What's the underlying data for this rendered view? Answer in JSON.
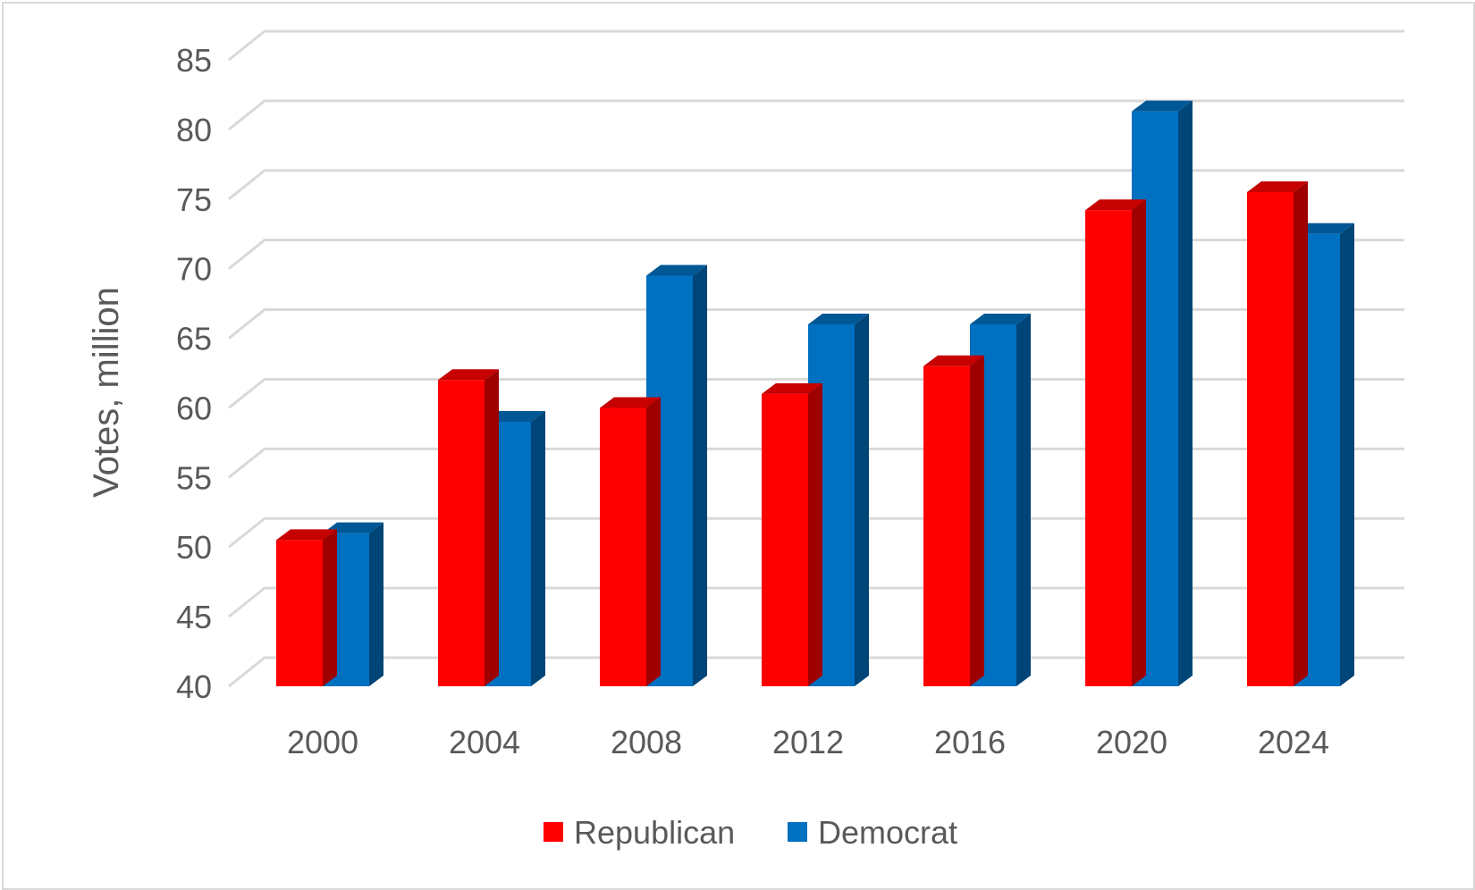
{
  "chart_data": {
    "type": "bar",
    "title": "",
    "xlabel": "",
    "ylabel": "Votes, million",
    "ylim": [
      40,
      85
    ],
    "yticks": [
      40,
      45,
      50,
      55,
      60,
      65,
      70,
      75,
      80,
      85
    ],
    "categories": [
      "2000",
      "2004",
      "2008",
      "2012",
      "2016",
      "2020",
      "2024"
    ],
    "series": [
      {
        "name": "Republican",
        "color": "#ff0000",
        "values": [
          50.5,
          62.0,
          60.0,
          61.0,
          63.0,
          74.2,
          75.5
        ]
      },
      {
        "name": "Democrat",
        "color": "#0070c0",
        "values": [
          51.0,
          59.0,
          69.5,
          66.0,
          66.0,
          81.3,
          72.5
        ]
      }
    ],
    "grid": true,
    "legend_position": "bottom",
    "style": "3d-clustered-column"
  }
}
